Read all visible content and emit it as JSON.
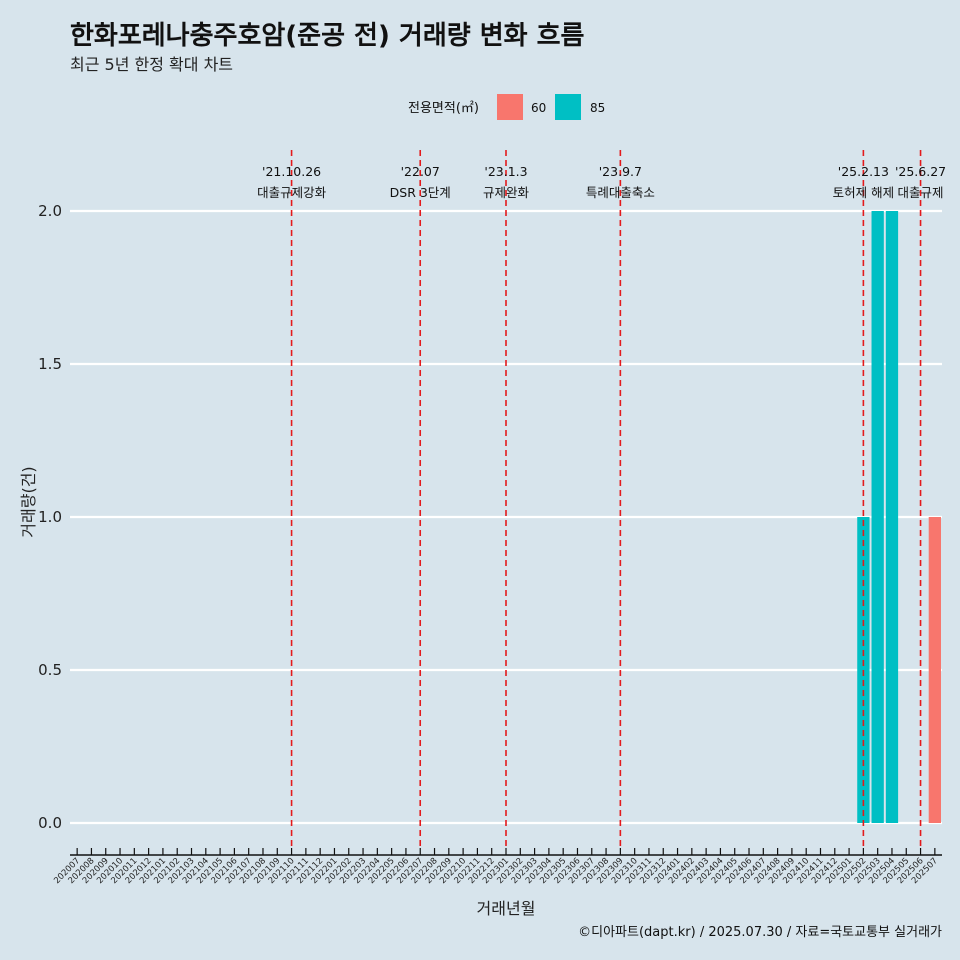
{
  "title": "한화포레나충주호암(준공 전) 거래량 변화 흐름",
  "subtitle": "최근 5년 한정 확대 차트",
  "caption": "©디아파트(dapt.kr) / 2025.07.30 / 자료=국토교통부 실거래가",
  "colors": {
    "background": "#d7e4ec",
    "area60": "#f8766d",
    "area85": "#00bfc4",
    "event_line": "#e31a1c",
    "grid": "#ffffff"
  },
  "chart_data": {
    "type": "bar",
    "xlabel": "거래년월",
    "ylabel": "거래량(건)",
    "ylim": [
      0,
      2.0
    ],
    "yticks": [
      0.0,
      0.5,
      1.0,
      1.5,
      2.0
    ],
    "ytick_labels": [
      "0.0",
      "0.5",
      "1.0",
      "1.5",
      "2.0"
    ],
    "legend": {
      "title": "전용면적(㎡)",
      "position": "top"
    },
    "categories": [
      "202007",
      "202008",
      "202009",
      "202010",
      "202011",
      "202012",
      "202101",
      "202102",
      "202103",
      "202104",
      "202105",
      "202106",
      "202107",
      "202108",
      "202109",
      "202110",
      "202111",
      "202112",
      "202201",
      "202202",
      "202203",
      "202204",
      "202205",
      "202206",
      "202207",
      "202208",
      "202209",
      "202210",
      "202211",
      "202212",
      "202301",
      "202302",
      "202303",
      "202304",
      "202305",
      "202306",
      "202307",
      "202308",
      "202309",
      "202310",
      "202311",
      "202312",
      "202401",
      "202402",
      "202403",
      "202404",
      "202405",
      "202406",
      "202407",
      "202408",
      "202409",
      "202410",
      "202411",
      "202412",
      "202501",
      "202502",
      "202503",
      "202504",
      "202505",
      "202506",
      "202507"
    ],
    "series": [
      {
        "name": "60",
        "color": "#f8766d",
        "points": [
          {
            "x": "202507",
            "y": 1
          }
        ]
      },
      {
        "name": "85",
        "color": "#00bfc4",
        "points": [
          {
            "x": "202502",
            "y": 1
          },
          {
            "x": "202503",
            "y": 2
          },
          {
            "x": "202504",
            "y": 2
          }
        ]
      }
    ],
    "events": [
      {
        "date": "'21.10.26",
        "label": "대출규제강화",
        "x": "202110"
      },
      {
        "date": "'22.07",
        "label": "DSR 3단계",
        "x": "202207"
      },
      {
        "date": "'23.1.3",
        "label": "규제완화",
        "x": "202301"
      },
      {
        "date": "'23.9.7",
        "label": "특례대출축소",
        "x": "202309"
      },
      {
        "date": "'25.2.13",
        "label": "토허제 해제",
        "x": "202502"
      },
      {
        "date": "'25.6.27",
        "label": "대출규제",
        "x": "202506"
      }
    ]
  }
}
